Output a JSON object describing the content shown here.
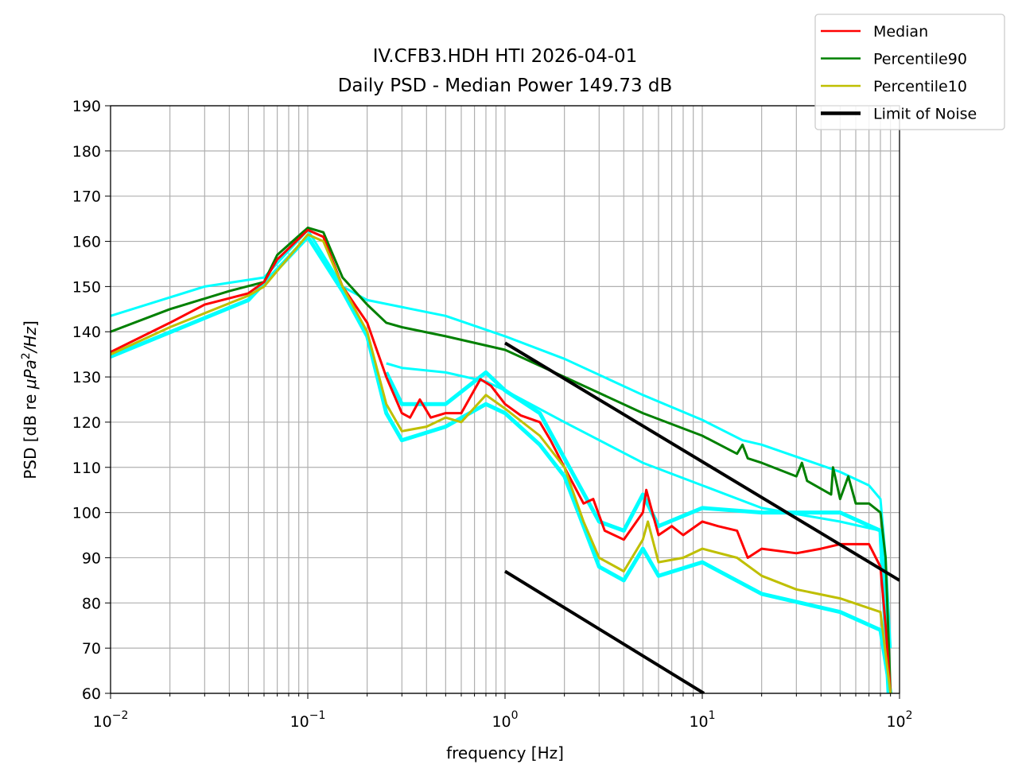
{
  "chart_data": {
    "type": "line",
    "title": [
      "IV.CFB3.HDH HTI 2026-04-01",
      "Daily PSD - Median Power 149.73 dB"
    ],
    "xlabel": "frequency [Hz]",
    "ylabel": "PSD [dB re μPa²/Hz]",
    "ylabel_parts": {
      "prefix": "PSD [dB re ",
      "italic": "μPa",
      "sup": "2",
      "suffix_italic": "/Hz",
      "suffix": "]"
    },
    "xscale": "log",
    "xlim": [
      0.01,
      100
    ],
    "ylim": [
      60,
      190
    ],
    "xticks": [
      {
        "base": "10",
        "exp": "−2"
      },
      {
        "base": "10",
        "exp": "−1"
      },
      {
        "base": "10",
        "exp": "0"
      },
      {
        "base": "10",
        "exp": "1"
      },
      {
        "base": "10",
        "exp": "2"
      }
    ],
    "yticks": [
      "60",
      "70",
      "80",
      "90",
      "100",
      "110",
      "120",
      "130",
      "140",
      "150",
      "160",
      "170",
      "180",
      "190"
    ],
    "grid": true,
    "legend_position": "top-right (outside)",
    "series": [
      {
        "name": "",
        "color": "#00ffff",
        "width": 3,
        "points": [
          [
            0.01,
            143.5
          ],
          [
            0.03,
            150
          ],
          [
            0.06,
            152
          ],
          [
            0.1,
            162.5
          ],
          [
            0.15,
            150
          ],
          [
            0.2,
            147
          ],
          [
            0.5,
            143.5
          ],
          [
            1,
            139
          ],
          [
            2,
            134
          ],
          [
            5,
            126
          ],
          [
            10,
            120.5
          ],
          [
            16,
            116
          ],
          [
            20,
            115
          ],
          [
            50,
            109
          ],
          [
            70,
            106
          ],
          [
            80,
            103
          ],
          [
            85,
            90
          ],
          [
            90,
            70
          ]
        ]
      },
      {
        "name": "",
        "color": "#00ffff",
        "width": 3,
        "points": [
          [
            0.25,
            133
          ],
          [
            0.3,
            132
          ],
          [
            0.5,
            131
          ],
          [
            0.8,
            129
          ],
          [
            1,
            127
          ],
          [
            2,
            120
          ],
          [
            5,
            111
          ],
          [
            10,
            106
          ],
          [
            20,
            101
          ],
          [
            50,
            98
          ],
          [
            80,
            96
          ],
          [
            85,
            85
          ],
          [
            90,
            60
          ]
        ]
      },
      {
        "name": "",
        "color": "#00ffff",
        "width": 5,
        "points": [
          [
            0.01,
            134.5
          ],
          [
            0.05,
            147
          ],
          [
            0.1,
            161
          ],
          [
            0.15,
            149
          ],
          [
            0.2,
            139
          ],
          [
            0.25,
            122
          ],
          [
            0.3,
            116
          ],
          [
            0.5,
            119
          ],
          [
            0.8,
            124
          ],
          [
            1,
            122
          ],
          [
            1.5,
            115
          ],
          [
            2,
            108
          ],
          [
            3,
            88
          ],
          [
            4,
            85
          ],
          [
            5,
            92
          ],
          [
            6,
            86
          ],
          [
            10,
            89
          ],
          [
            20,
            82
          ],
          [
            50,
            78
          ],
          [
            80,
            74
          ],
          [
            90,
            60
          ]
        ]
      },
      {
        "name": "",
        "color": "#00ffff",
        "width": 5,
        "points": [
          [
            0.25,
            131
          ],
          [
            0.3,
            124
          ],
          [
            0.5,
            124
          ],
          [
            0.8,
            131
          ],
          [
            1,
            127
          ],
          [
            1.5,
            122
          ],
          [
            2,
            112
          ],
          [
            3,
            98
          ],
          [
            4,
            96
          ],
          [
            5,
            104
          ],
          [
            6,
            97
          ],
          [
            10,
            101
          ],
          [
            20,
            100
          ],
          [
            50,
            100
          ],
          [
            80,
            96
          ],
          [
            88,
            60
          ]
        ]
      },
      {
        "name": "Percentile90",
        "color": "#008000",
        "width": 3,
        "points": [
          [
            0.01,
            140
          ],
          [
            0.02,
            145
          ],
          [
            0.04,
            149
          ],
          [
            0.06,
            151
          ],
          [
            0.07,
            157
          ],
          [
            0.1,
            163
          ],
          [
            0.12,
            162
          ],
          [
            0.15,
            152
          ],
          [
            0.2,
            146
          ],
          [
            0.25,
            142
          ],
          [
            0.3,
            141
          ],
          [
            0.5,
            139
          ],
          [
            1,
            136
          ],
          [
            2,
            130
          ],
          [
            5,
            122
          ],
          [
            10,
            117
          ],
          [
            15,
            113
          ],
          [
            16,
            115
          ],
          [
            17,
            112
          ],
          [
            20,
            111
          ],
          [
            30,
            108
          ],
          [
            32,
            111
          ],
          [
            34,
            107
          ],
          [
            45,
            104
          ],
          [
            46,
            110
          ],
          [
            50,
            103
          ],
          [
            55,
            108
          ],
          [
            60,
            102
          ],
          [
            70,
            102
          ],
          [
            80,
            100
          ],
          [
            85,
            90
          ],
          [
            90,
            60
          ]
        ]
      },
      {
        "name": "Median",
        "color": "#ff0000",
        "width": 3,
        "points": [
          [
            0.01,
            135.5
          ],
          [
            0.02,
            142
          ],
          [
            0.03,
            146
          ],
          [
            0.05,
            148.5
          ],
          [
            0.06,
            151
          ],
          [
            0.07,
            156
          ],
          [
            0.1,
            162.5
          ],
          [
            0.12,
            161
          ],
          [
            0.15,
            150
          ],
          [
            0.2,
            142
          ],
          [
            0.25,
            130
          ],
          [
            0.3,
            122
          ],
          [
            0.33,
            121
          ],
          [
            0.37,
            125
          ],
          [
            0.42,
            121
          ],
          [
            0.5,
            122
          ],
          [
            0.6,
            122
          ],
          [
            0.75,
            129.5
          ],
          [
            0.85,
            128
          ],
          [
            1,
            124
          ],
          [
            1.2,
            121.5
          ],
          [
            1.5,
            120
          ],
          [
            1.7,
            116
          ],
          [
            2,
            110
          ],
          [
            2.5,
            102
          ],
          [
            2.8,
            103
          ],
          [
            3.2,
            96
          ],
          [
            4,
            94
          ],
          [
            5,
            100
          ],
          [
            5.2,
            105
          ],
          [
            6,
            95
          ],
          [
            7,
            97
          ],
          [
            8,
            95
          ],
          [
            10,
            98
          ],
          [
            12,
            97
          ],
          [
            15,
            96
          ],
          [
            17,
            90
          ],
          [
            20,
            92
          ],
          [
            30,
            91
          ],
          [
            40,
            92
          ],
          [
            50,
            93
          ],
          [
            70,
            93
          ],
          [
            80,
            88
          ],
          [
            85,
            75
          ],
          [
            90,
            60
          ]
        ]
      },
      {
        "name": "Percentile10",
        "color": "#bfbf00",
        "width": 3,
        "points": [
          [
            0.01,
            135
          ],
          [
            0.02,
            141
          ],
          [
            0.05,
            148
          ],
          [
            0.06,
            150
          ],
          [
            0.1,
            161.5
          ],
          [
            0.12,
            160
          ],
          [
            0.15,
            150
          ],
          [
            0.2,
            140
          ],
          [
            0.25,
            124
          ],
          [
            0.3,
            118
          ],
          [
            0.4,
            119
          ],
          [
            0.5,
            121
          ],
          [
            0.6,
            120
          ],
          [
            0.8,
            126
          ],
          [
            1,
            123
          ],
          [
            1.5,
            117
          ],
          [
            2,
            110
          ],
          [
            2.5,
            98
          ],
          [
            3,
            90
          ],
          [
            4,
            87
          ],
          [
            5,
            94
          ],
          [
            5.3,
            98
          ],
          [
            6,
            89
          ],
          [
            8,
            90
          ],
          [
            10,
            92
          ],
          [
            15,
            90
          ],
          [
            20,
            86
          ],
          [
            30,
            83
          ],
          [
            50,
            81
          ],
          [
            80,
            78
          ],
          [
            90,
            60
          ]
        ]
      },
      {
        "name": "Limit of Noise",
        "color": "#000000",
        "width": 4,
        "points": [
          [
            1,
            137.5
          ],
          [
            100,
            85
          ]
        ]
      },
      {
        "name": "",
        "color": "#000000",
        "width": 4,
        "points": [
          [
            1,
            87
          ],
          [
            10.2,
            60
          ]
        ]
      }
    ],
    "legend": [
      {
        "label": "Median",
        "color": "#ff0000",
        "width": 2
      },
      {
        "label": "Percentile90",
        "color": "#008000",
        "width": 2
      },
      {
        "label": "Percentile10",
        "color": "#bfbf00",
        "width": 2
      },
      {
        "label": "Limit of Noise",
        "color": "#000000",
        "width": 4
      }
    ]
  }
}
